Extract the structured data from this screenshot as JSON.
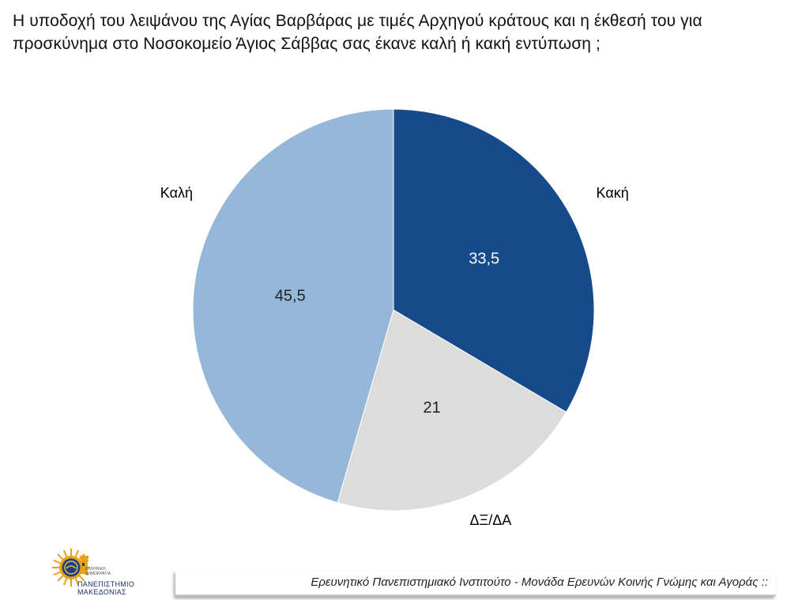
{
  "title": "Η υποδοχή του λειψάνου της Αγίας Βαρβάρας με τιμές Αρχηγού κράτους και η έκθεσή του για προσκύνημα στο Νοσοκομείο Άγιος Σάββας σας έκανε καλή ή κακή εντύπωση ;",
  "chart_data": {
    "type": "pie",
    "title": "Η υποδοχή του λειψάνου της Αγίας Βαρβάρας με τιμές Αρχηγού κράτους και η έκθεσή του για προσκύνημα στο Νοσοκομείο Άγιος Σάββας σας έκανε καλή ή κακή εντύπωση ;",
    "start": "12 o'clock, clockwise",
    "slices": [
      {
        "label": "Κακή",
        "value": 33.5,
        "display": "33,5",
        "color": "#154b8a",
        "text_color": "#ffffff"
      },
      {
        "label": "ΔΞ/ΔΑ",
        "value": 21,
        "display": "21",
        "color": "#dcdcdc",
        "text_color": "#222222"
      },
      {
        "label": "Καλή",
        "value": 45.5,
        "display": "45,5",
        "color": "#95b8d9",
        "text_color": "#222222"
      }
    ]
  },
  "logo": {
    "university_line1": "ΠΑΝΕΠΙΣΤΗΜΙΟ",
    "university_line2": "ΜΑΚΕΔΟΝΙΑΣ",
    "small_text_line1": "ΕΛΛΗΝΙΚΗ",
    "small_text_line2": "ΔΗΜΟΚΡΑΤΙΑ"
  },
  "footer": {
    "text": "Ερευνητικό Πανεπιστημιακό Ινστιτούτο - Μονάδα Ερευνών Κοινής Γνώμης και Αγοράς ::"
  }
}
